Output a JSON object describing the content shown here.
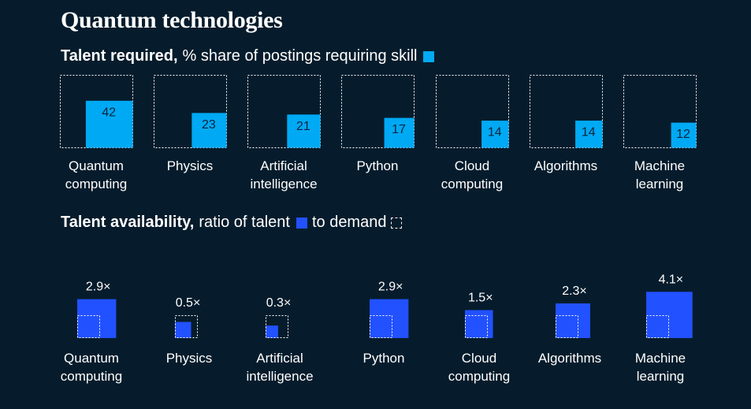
{
  "title": "Quantum technologies",
  "section1": {
    "bold": "Talent required,",
    "rest": "% share of postings requiring skill"
  },
  "section2": {
    "bold": "Talent availability,",
    "rest_a": "ratio of talent",
    "rest_b": "to demand"
  },
  "colors": {
    "background": "#061c2c",
    "required": "#00a9f4",
    "availability": "#2251ff",
    "demand_outline": "#ffffff"
  },
  "chart_data": [
    {
      "type": "bar",
      "categories": [
        [
          "Quantum",
          "computing"
        ],
        [
          "Physics"
        ],
        [
          "Artificial",
          "intelligence"
        ],
        [
          "Python"
        ],
        [
          "Cloud",
          "computing"
        ],
        [
          "Algorithms"
        ],
        [
          "Machine",
          "learning"
        ]
      ],
      "values": [
        42,
        23,
        21,
        17,
        14,
        14,
        12
      ],
      "value_labels": [
        "42",
        "23",
        "21",
        "17",
        "14",
        "14",
        "12"
      ],
      "max_value": 100
    },
    {
      "type": "bar",
      "categories": [
        [
          "Quantum",
          "computing"
        ],
        [
          "Physics"
        ],
        [
          "Artificial",
          "intelligence"
        ],
        [
          "Python"
        ],
        [
          "Cloud",
          "computing"
        ],
        [
          "Algorithms"
        ],
        [
          "Machine",
          "learning"
        ]
      ],
      "values": [
        2.9,
        0.5,
        0.3,
        2.9,
        1.5,
        2.3,
        4.1
      ],
      "value_labels": [
        "2.9×",
        "0.5×",
        "0.3×",
        "2.9×",
        "1.5×",
        "2.3×",
        "4.1×"
      ]
    }
  ]
}
